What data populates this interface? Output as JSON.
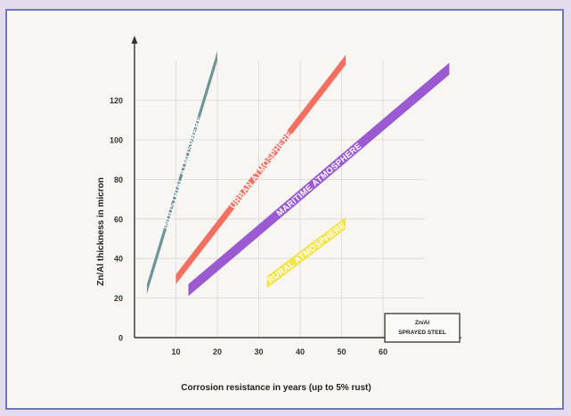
{
  "chart_data": {
    "type": "area",
    "xlabel": "Corrosion resistance in years (up to 5% rust)",
    "ylabel": "Zn/Al thickness in micron",
    "x_ticks": [
      "10",
      "20",
      "30",
      "40",
      "50",
      "60"
    ],
    "y_ticks": [
      "0",
      "20",
      "40",
      "60",
      "80",
      "100",
      "120"
    ],
    "xlim": [
      0,
      70
    ],
    "ylim": [
      0,
      140
    ],
    "grid": true,
    "legend": {
      "line1": "Zn/Al",
      "line2": "SPRAYED STEEL",
      "placement": "bottom-right"
    },
    "series": [
      {
        "name": "INDUSTRIAL ATMOSPHERE",
        "color": "#6e959a",
        "x": [
          3,
          20
        ],
        "y_low": [
          22,
          140
        ],
        "y_high": [
          27,
          145
        ]
      },
      {
        "name": "URBAN ATMOSPHERE",
        "color": "#f36f60",
        "x": [
          10,
          51
        ],
        "y_low": [
          27,
          138
        ],
        "y_high": [
          32,
          143
        ]
      },
      {
        "name": "MARITIME ATMOSPHERE",
        "color": "#9b5ad1",
        "x": [
          13,
          76
        ],
        "y_low": [
          21,
          133
        ],
        "y_high": [
          27,
          139
        ]
      },
      {
        "name": "RURAL ATMOSPHERE",
        "color": "#f3e44e",
        "x": [
          32,
          51
        ],
        "y_low": [
          25,
          55
        ],
        "y_high": [
          31,
          61
        ]
      }
    ]
  }
}
